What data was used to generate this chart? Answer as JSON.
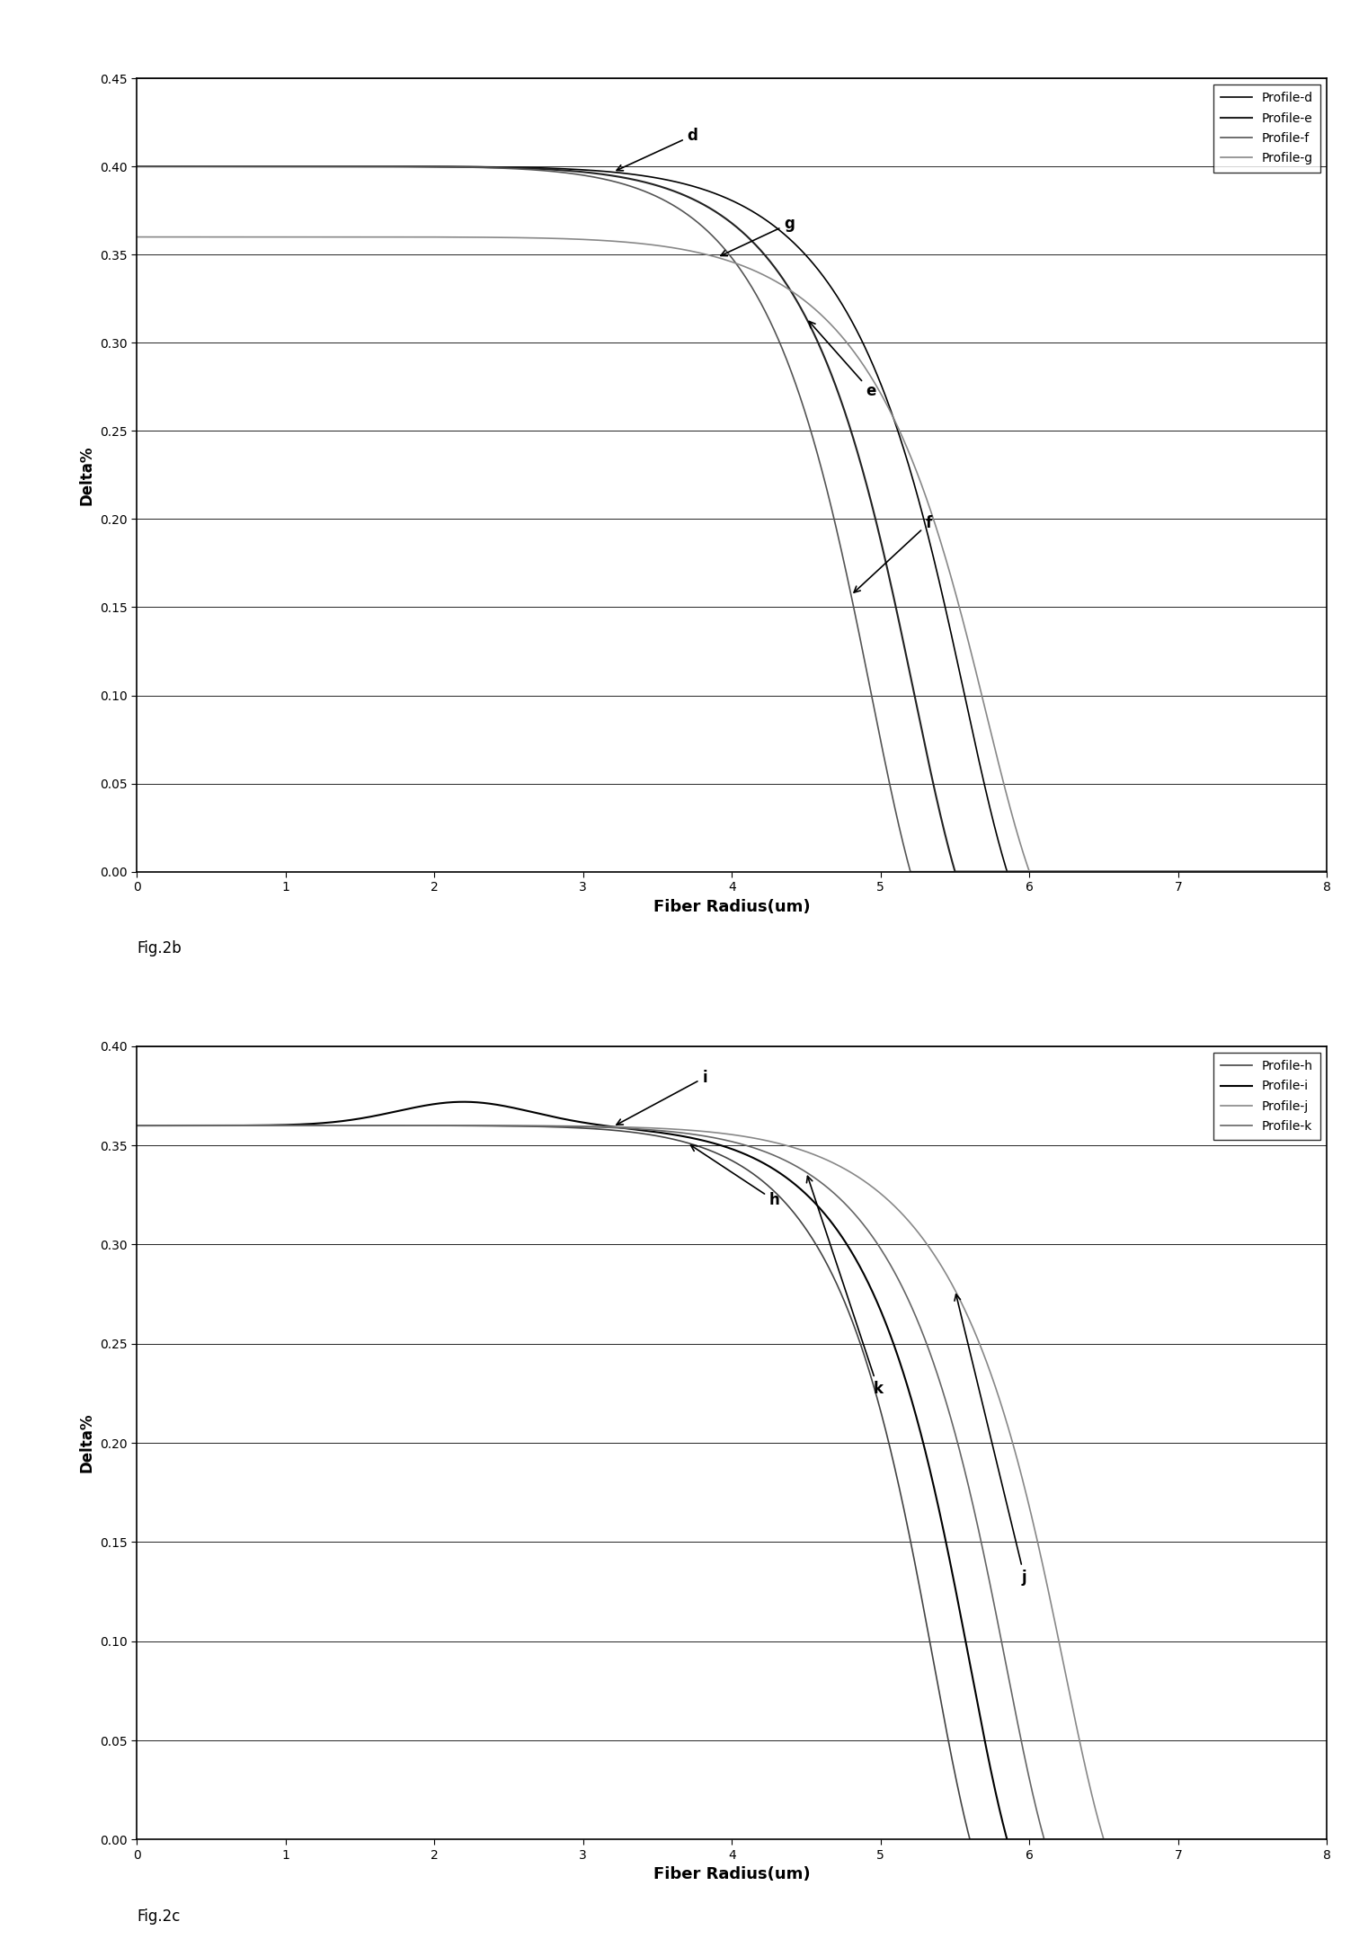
{
  "fig2b": {
    "xlabel": "Fiber Radius(um)",
    "ylabel": "Delta%",
    "xlim": [
      0,
      8
    ],
    "ylim": [
      0.0,
      0.45
    ],
    "yticks": [
      0.0,
      0.05,
      0.1,
      0.15,
      0.2,
      0.25,
      0.3,
      0.35,
      0.4,
      0.45
    ],
    "xticks": [
      0,
      1,
      2,
      3,
      4,
      5,
      6,
      7,
      8
    ],
    "caption": "Fig.2b",
    "legend_labels": [
      "Profile-d",
      "Profile-e",
      "Profile-f",
      "Profile-g"
    ]
  },
  "fig2c": {
    "xlabel": "Fiber Radius(um)",
    "ylabel": "Delta%",
    "xlim": [
      0,
      8
    ],
    "ylim": [
      0.0,
      0.4
    ],
    "yticks": [
      0.0,
      0.05,
      0.1,
      0.15,
      0.2,
      0.25,
      0.3,
      0.35,
      0.4
    ],
    "xticks": [
      0,
      1,
      2,
      3,
      4,
      5,
      6,
      7,
      8
    ],
    "caption": "Fig.2c",
    "legend_labels": [
      "Profile-h",
      "Profile-i",
      "Profile-j",
      "Profile-k"
    ]
  }
}
